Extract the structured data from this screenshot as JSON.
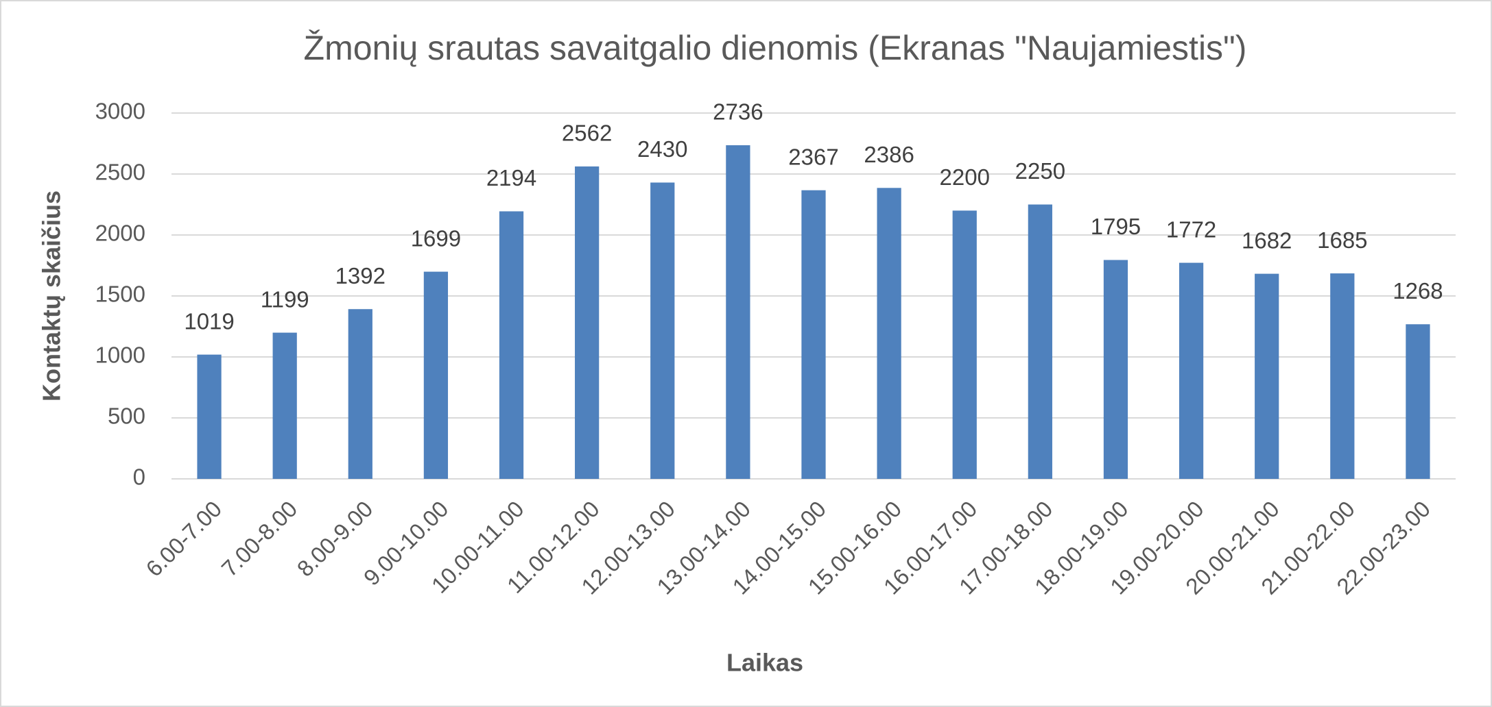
{
  "chart_data": {
    "type": "bar",
    "title": "Žmonių srautas savaitgalio dienomis (Ekranas \"Naujamiestis\")",
    "x_label": "Laikas",
    "y_label": "Kontaktų skaičius",
    "categories": [
      "6.00-7.00",
      "7.00-8.00",
      "8.00-9.00",
      "9.00-10.00",
      "10.00-11.00",
      "11.00-12.00",
      "12.00-13.00",
      "13.00-14.00",
      "14.00-15.00",
      "15.00-16.00",
      "16.00-17.00",
      "17.00-18.00",
      "18.00-19.00",
      "19.00-20.00",
      "20.00-21.00",
      "21.00-22.00",
      "22.00-23.00"
    ],
    "values": [
      1019,
      1199,
      1392,
      1699,
      2194,
      2562,
      2430,
      2736,
      2367,
      2386,
      2200,
      2250,
      1795,
      1772,
      1682,
      1685,
      1268
    ],
    "color": "#4f81bd",
    "ylim": [
      0,
      3000
    ],
    "yticks": [
      0,
      500,
      1000,
      1500,
      2000,
      2500,
      3000
    ],
    "grid": true
  }
}
